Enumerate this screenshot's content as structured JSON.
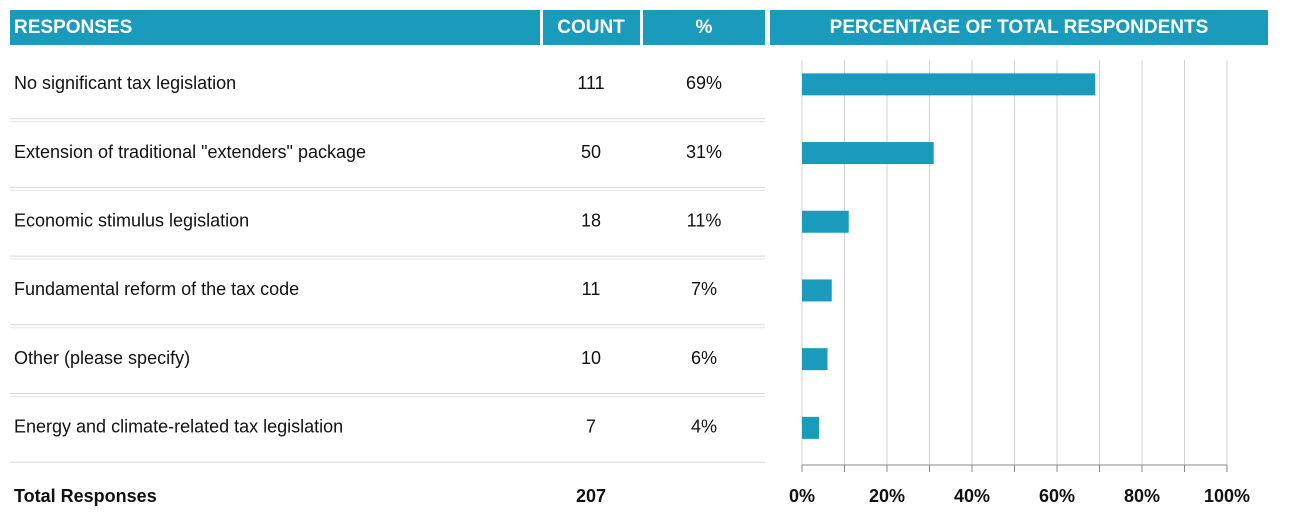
{
  "table": {
    "header": [
      "RESPONSES",
      "COUNT",
      "%"
    ],
    "rows": [
      [
        "No significant tax legislation",
        "111",
        "69%"
      ],
      [
        "Extension of traditional \"extenders\" package",
        "50",
        "31%"
      ],
      [
        "Economic stimulus legislation",
        "18",
        "11%"
      ],
      [
        "Fundamental reform of the tax code",
        "11",
        "7%"
      ],
      [
        "Other (please specify)",
        "10",
        "6%"
      ],
      [
        "Energy and climate-related tax legislation",
        "7",
        "4%"
      ]
    ],
    "total": [
      "Total Responses",
      "207"
    ]
  },
  "chart_data": {
    "type": "bar",
    "orientation": "horizontal",
    "title": "PERCENTAGE OF TOTAL RESPONDENTS",
    "values": [
      69,
      31,
      11,
      7,
      6,
      4
    ],
    "color": "#1a9bbb",
    "xlim": [
      0,
      100
    ],
    "xticks": [
      {
        "value": 0,
        "label": "0%"
      },
      {
        "value": 20,
        "label": "20%"
      },
      {
        "value": 40,
        "label": "40%"
      },
      {
        "value": 60,
        "label": "60%"
      },
      {
        "value": 80,
        "label": "80%"
      },
      {
        "value": 100,
        "label": "100%"
      }
    ],
    "xminor": [
      10,
      30,
      50,
      70,
      90
    ],
    "grid": true
  }
}
